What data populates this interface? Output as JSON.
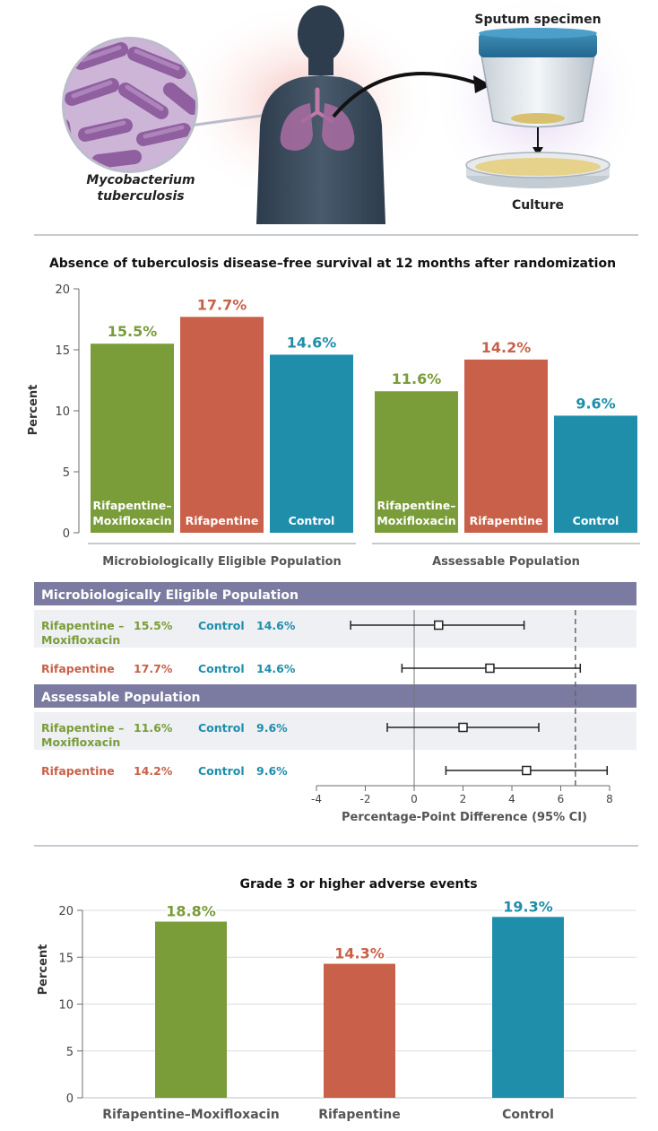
{
  "colors": {
    "green": "#7a9c39",
    "red": "#c9614a",
    "teal": "#1f8eab",
    "header": "#7b7aa0",
    "band": "#eef0f4",
    "axis": "#6e6e6e",
    "text": "#333333"
  },
  "illustration": {
    "bacterium_label": "Mycobacterium tuberculosis",
    "bacterium_label_line1": "Mycobacterium",
    "bacterium_label_line2": "tuberculosis",
    "specimen_label": "Sputum specimen",
    "culture_label": "Culture"
  },
  "chart_data": [
    {
      "type": "bar",
      "title": "Absence of tuberculosis disease–free survival at 12 months after randomization",
      "ylabel": "Percent",
      "ylim": [
        0,
        20
      ],
      "yticks": [
        0,
        5,
        10,
        15,
        20
      ],
      "groups": [
        {
          "label": "Microbiologically Eligible Population",
          "bars": [
            {
              "name": "Rifapentine–Moxifloxacin",
              "label_lines": [
                "Rifapentine–",
                "Moxifloxacin"
              ],
              "value": 15.5,
              "display": "15.5%",
              "color": "green"
            },
            {
              "name": "Rifapentine",
              "label_lines": [
                "Rifapentine"
              ],
              "value": 17.7,
              "display": "17.7%",
              "color": "red"
            },
            {
              "name": "Control",
              "label_lines": [
                "Control"
              ],
              "value": 14.6,
              "display": "14.6%",
              "color": "teal"
            }
          ]
        },
        {
          "label": "Assessable Population",
          "bars": [
            {
              "name": "Rifapentine–Moxifloxacin",
              "label_lines": [
                "Rifapentine–",
                "Moxifloxacin"
              ],
              "value": 11.6,
              "display": "11.6%",
              "color": "green"
            },
            {
              "name": "Rifapentine",
              "label_lines": [
                "Rifapentine"
              ],
              "value": 14.2,
              "display": "14.2%",
              "color": "red"
            },
            {
              "name": "Control",
              "label_lines": [
                "Control"
              ],
              "value": 9.6,
              "display": "9.6%",
              "color": "teal"
            }
          ]
        }
      ]
    },
    {
      "type": "forest",
      "xlabel": "Percentage-Point Difference (95% CI)",
      "xlim": [
        -4,
        8
      ],
      "xticks": [
        -4,
        -2,
        0,
        2,
        4,
        6,
        8
      ],
      "reference_line": 0,
      "margin_line": 6.6,
      "sections": [
        {
          "title": "Microbiologically Eligible Population",
          "rows": [
            {
              "arm_lines": [
                "Rifapentine –",
                "Moxifloxacin"
              ],
              "arm_color": "green",
              "arm_value": "15.5%",
              "control": "Control",
              "control_value": "14.6%",
              "estimate": 1.0,
              "ci": [
                -2.6,
                4.5
              ],
              "shaded": true
            },
            {
              "arm_lines": [
                "Rifapentine"
              ],
              "arm_color": "red",
              "arm_value": "17.7%",
              "control": "Control",
              "control_value": "14.6%",
              "estimate": 3.1,
              "ci": [
                -0.5,
                6.8
              ],
              "shaded": false
            }
          ]
        },
        {
          "title": "Assessable Population",
          "rows": [
            {
              "arm_lines": [
                "Rifapentine –",
                "Moxifloxacin"
              ],
              "arm_color": "green",
              "arm_value": "11.6%",
              "control": "Control",
              "control_value": "9.6%",
              "estimate": 2.0,
              "ci": [
                -1.1,
                5.1
              ],
              "shaded": true
            },
            {
              "arm_lines": [
                "Rifapentine"
              ],
              "arm_color": "red",
              "arm_value": "14.2%",
              "control": "Control",
              "control_value": "9.6%",
              "estimate": 4.6,
              "ci": [
                1.3,
                7.9
              ],
              "shaded": false
            }
          ]
        }
      ]
    },
    {
      "type": "bar",
      "title": "Grade 3 or higher adverse events",
      "ylabel": "Percent",
      "ylim": [
        0,
        20
      ],
      "yticks": [
        0,
        5,
        10,
        15,
        20
      ],
      "gridlines": true,
      "bars": [
        {
          "name": "Rifapentine–Moxifloxacin",
          "value": 18.8,
          "display": "18.8%",
          "color": "green"
        },
        {
          "name": "Rifapentine",
          "value": 14.3,
          "display": "14.3%",
          "color": "red"
        },
        {
          "name": "Control",
          "value": 19.3,
          "display": "19.3%",
          "color": "teal"
        }
      ]
    }
  ]
}
